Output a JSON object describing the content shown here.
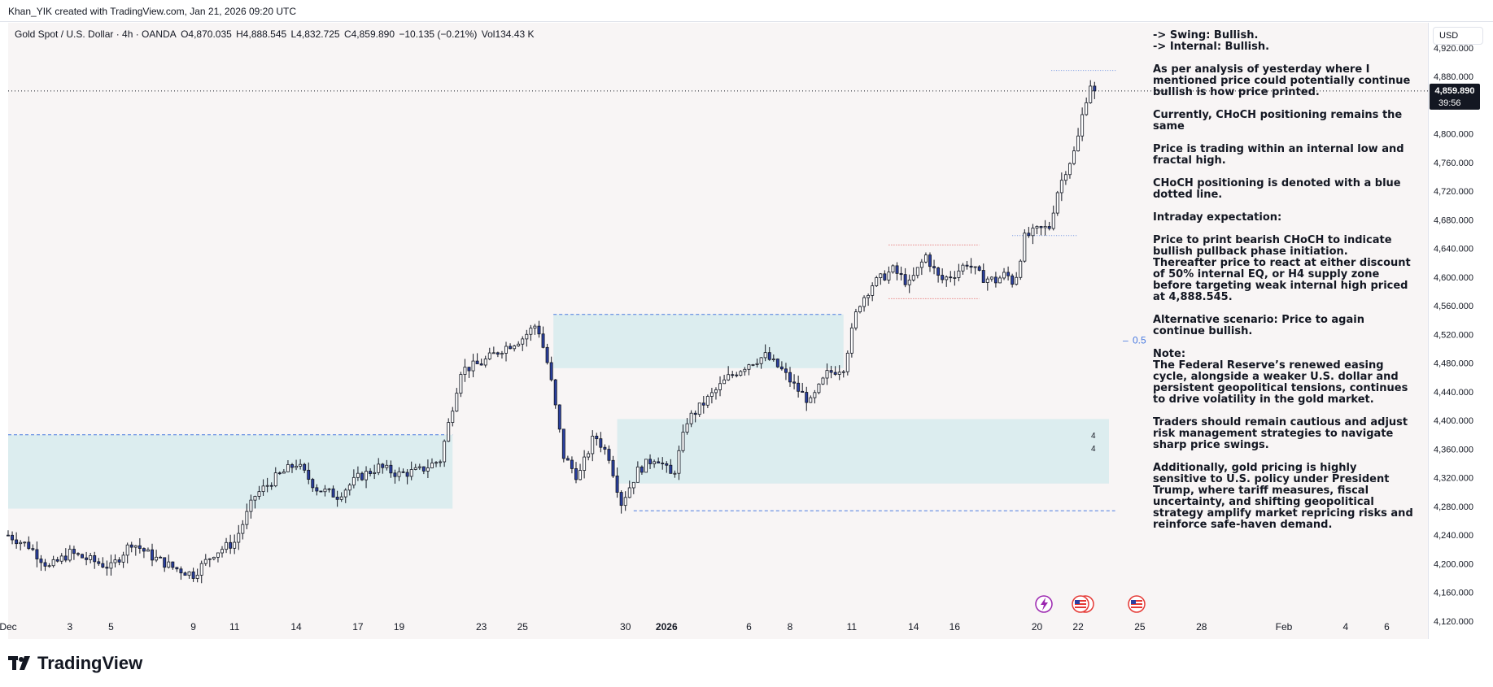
{
  "header": {
    "credit": "Khan_YIK created with TradingView.com, Jan 21, 2026 09:20 UTC"
  },
  "legend": {
    "symbol": "Gold Spot / U.S. Dollar · 4h · OANDA",
    "open": "O4,870.035",
    "high": "H4,888.545",
    "low": "L4,832.725",
    "close": "C4,859.890",
    "change": "−10.135 (−0.21%)",
    "volume": "Vol134.43 K"
  },
  "price_axis": {
    "currency": "USD",
    "current_price": "4,859.890",
    "countdown": "39:56"
  },
  "annotations": {
    "fib_label": "0.5",
    "zone_marks": [
      "4",
      "4"
    ]
  },
  "analysis": {
    "swing": "-> Swing:  Bullish.",
    "internal": "-> Internal:  Bullish.",
    "p1": "As per analysis of yesterday where I mentioned price could potentially continue bullish is how price printed.",
    "p2": "Currently, CHoCH positioning remains the same",
    "p3": "Price is trading within an internal low and fractal high.",
    "p4": "CHoCH positioning is denoted with a blue dotted line.",
    "p5": "Intraday expectation:",
    "p6": "Price to print bearish CHoCH to indicate bullish pullback phase initiation.  Thereafter price to react at either discount of 50% internal EQ, or H4 supply zone before targeting weak internal high priced at 4,888.545.",
    "p7": "Alternative scenario:  Price to again continue bullish.",
    "p8_title": "Note:",
    "p8": "The Federal Reserve’s renewed easing cycle, alongside a weaker U.S. dollar and persistent geopolitical tensions, continues to drive volatility in the gold market.",
    "p9": "Traders should remain cautious and adjust risk management strategies to navigate sharp price swings.",
    "p10": "Additionally, gold pricing is highly sensitive to U.S. policy under President Trump, where tariff measures, fiscal uncertainty, and shifting geopolitical strategy amplify market repricing risks and reinforce safe-haven demand."
  },
  "footer": {
    "brand": "TradingView"
  },
  "colors": {
    "bull_candle": "#ffffff",
    "bear_candle": "#2a3fa0",
    "wick": "#131722",
    "zone_fill": "#d3e9ec",
    "zone_border": "#4a7be0",
    "choch_line": "#6a8fe0",
    "red_line": "#e05050",
    "price_label_bg": "#131722",
    "event_lightning": "#9c27b0",
    "event_flag": "#e53935"
  },
  "chart_data": {
    "type": "candlestick",
    "y_ticks": [
      4120,
      4160,
      4200,
      4240,
      4280,
      4320,
      4360,
      4400,
      4440,
      4480,
      4520,
      4560,
      4600,
      4640,
      4680,
      4720,
      4760,
      4800,
      4840,
      4880,
      4920
    ],
    "y_tick_labels": [
      "4,120.000",
      "4,160.000",
      "4,200.000",
      "4,240.000",
      "4,280.000",
      "4,320.000",
      "4,360.000",
      "4,400.000",
      "4,440.000",
      "4,480.000",
      "4,520.000",
      "4,560.000",
      "4,600.000",
      "4,640.000",
      "4,680.000",
      "4,720.000",
      "4,760.000",
      "4,800.000",
      "4,840.000",
      "4,880.000",
      "4,920.000"
    ],
    "ylim": [
      4095,
      4955
    ],
    "x_ticks": [
      "Dec",
      "3",
      "5",
      "9",
      "11",
      "14",
      "17",
      "19",
      "23",
      "25",
      "30",
      "2026",
      "6",
      "8",
      "11",
      "14",
      "16",
      "20",
      "22",
      "25",
      "28",
      "Feb",
      "4",
      "6"
    ],
    "x_tick_days": [
      0,
      3,
      5,
      9,
      11,
      14,
      17,
      19,
      23,
      25,
      30,
      32,
      36,
      38,
      41,
      44,
      46,
      50,
      52,
      55,
      58,
      62,
      65,
      67
    ],
    "xlim": [
      0,
      69
    ],
    "key_points": [
      {
        "day": 0,
        "price": 4240
      },
      {
        "day": 1,
        "price": 4225
      },
      {
        "day": 2,
        "price": 4195
      },
      {
        "day": 3,
        "price": 4215
      },
      {
        "day": 4,
        "price": 4205
      },
      {
        "day": 5,
        "price": 4195
      },
      {
        "day": 6,
        "price": 4230
      },
      {
        "day": 7,
        "price": 4210
      },
      {
        "day": 8,
        "price": 4195
      },
      {
        "day": 9,
        "price": 4185
      },
      {
        "day": 10,
        "price": 4215
      },
      {
        "day": 11,
        "price": 4230
      },
      {
        "day": 12,
        "price": 4295
      },
      {
        "day": 13,
        "price": 4320
      },
      {
        "day": 14,
        "price": 4340
      },
      {
        "day": 15,
        "price": 4305
      },
      {
        "day": 16,
        "price": 4295
      },
      {
        "day": 17,
        "price": 4320
      },
      {
        "day": 18,
        "price": 4335
      },
      {
        "day": 19,
        "price": 4325
      },
      {
        "day": 20,
        "price": 4330
      },
      {
        "day": 21,
        "price": 4345
      },
      {
        "day": 22,
        "price": 4470
      },
      {
        "day": 23,
        "price": 4480
      },
      {
        "day": 24,
        "price": 4500
      },
      {
        "day": 25,
        "price": 4515
      },
      {
        "day": 25.7,
        "price": 4535
      },
      {
        "day": 26.3,
        "price": 4470
      },
      {
        "day": 27,
        "price": 4350
      },
      {
        "day": 27.7,
        "price": 4320
      },
      {
        "day": 28.5,
        "price": 4380
      },
      {
        "day": 29.2,
        "price": 4350
      },
      {
        "day": 29.8,
        "price": 4285
      },
      {
        "day": 30.6,
        "price": 4330
      },
      {
        "day": 31.5,
        "price": 4350
      },
      {
        "day": 32.3,
        "price": 4320
      },
      {
        "day": 33,
        "price": 4400
      },
      {
        "day": 34,
        "price": 4430
      },
      {
        "day": 35,
        "price": 4460
      },
      {
        "day": 36,
        "price": 4480
      },
      {
        "day": 36.8,
        "price": 4490
      },
      {
        "day": 37.6,
        "price": 4470
      },
      {
        "day": 38.3,
        "price": 4445
      },
      {
        "day": 39,
        "price": 4425
      },
      {
        "day": 39.8,
        "price": 4465
      },
      {
        "day": 40.6,
        "price": 4475
      },
      {
        "day": 41.3,
        "price": 4560
      },
      {
        "day": 42,
        "price": 4590
      },
      {
        "day": 43,
        "price": 4610
      },
      {
        "day": 43.8,
        "price": 4590
      },
      {
        "day": 44.6,
        "price": 4630
      },
      {
        "day": 45.3,
        "price": 4595
      },
      {
        "day": 46,
        "price": 4605
      },
      {
        "day": 46.6,
        "price": 4620
      },
      {
        "day": 47.3,
        "price": 4600
      },
      {
        "day": 48,
        "price": 4595
      },
      {
        "day": 48.5,
        "price": 4605
      },
      {
        "day": 48.9,
        "price": 4590
      },
      {
        "day": 49.4,
        "price": 4655
      },
      {
        "day": 50,
        "price": 4665
      },
      {
        "day": 50.6,
        "price": 4670
      },
      {
        "day": 51,
        "price": 4720
      },
      {
        "day": 51.4,
        "price": 4750
      },
      {
        "day": 51.9,
        "price": 4780
      },
      {
        "day": 52.3,
        "price": 4840
      },
      {
        "day": 52.6,
        "price": 4870
      },
      {
        "day": 52.9,
        "price": 4860
      }
    ],
    "last_close": 4859.89,
    "zones": [
      {
        "name": "demand-zone-december",
        "day_from": 0,
        "day_to": 21.6,
        "price_from": 4277,
        "price_to": 4380
      },
      {
        "name": "supply-zone-late-december",
        "day_from": 26.5,
        "day_to": 40.6,
        "price_from": 4473,
        "price_to": 4548
      },
      {
        "name": "demand-zone-january",
        "day_from": 29.6,
        "day_to": 53.5,
        "price_from": 4312,
        "price_to": 4402
      }
    ],
    "choch_levels": [
      {
        "price": 4888.545,
        "day_from": 50.7,
        "day_to": 53.9
      },
      {
        "price": 4658,
        "day_from": 48.8,
        "day_to": 52
      }
    ],
    "range_levels": [
      {
        "price": 4645,
        "day_from": 42.8,
        "day_to": 47.2
      },
      {
        "price": 4570,
        "day_from": 42.8,
        "day_to": 47.2
      }
    ],
    "dashed_levels": [
      {
        "price": 4380,
        "day_from": 0,
        "day_to": 21.6
      },
      {
        "price": 4548,
        "day_from": 26.5,
        "day_to": 40.6
      },
      {
        "price": 4274,
        "day_from": 30.4,
        "day_to": 53.8
      }
    ],
    "fib_level": {
      "label": "0.5",
      "price": 4512
    }
  }
}
